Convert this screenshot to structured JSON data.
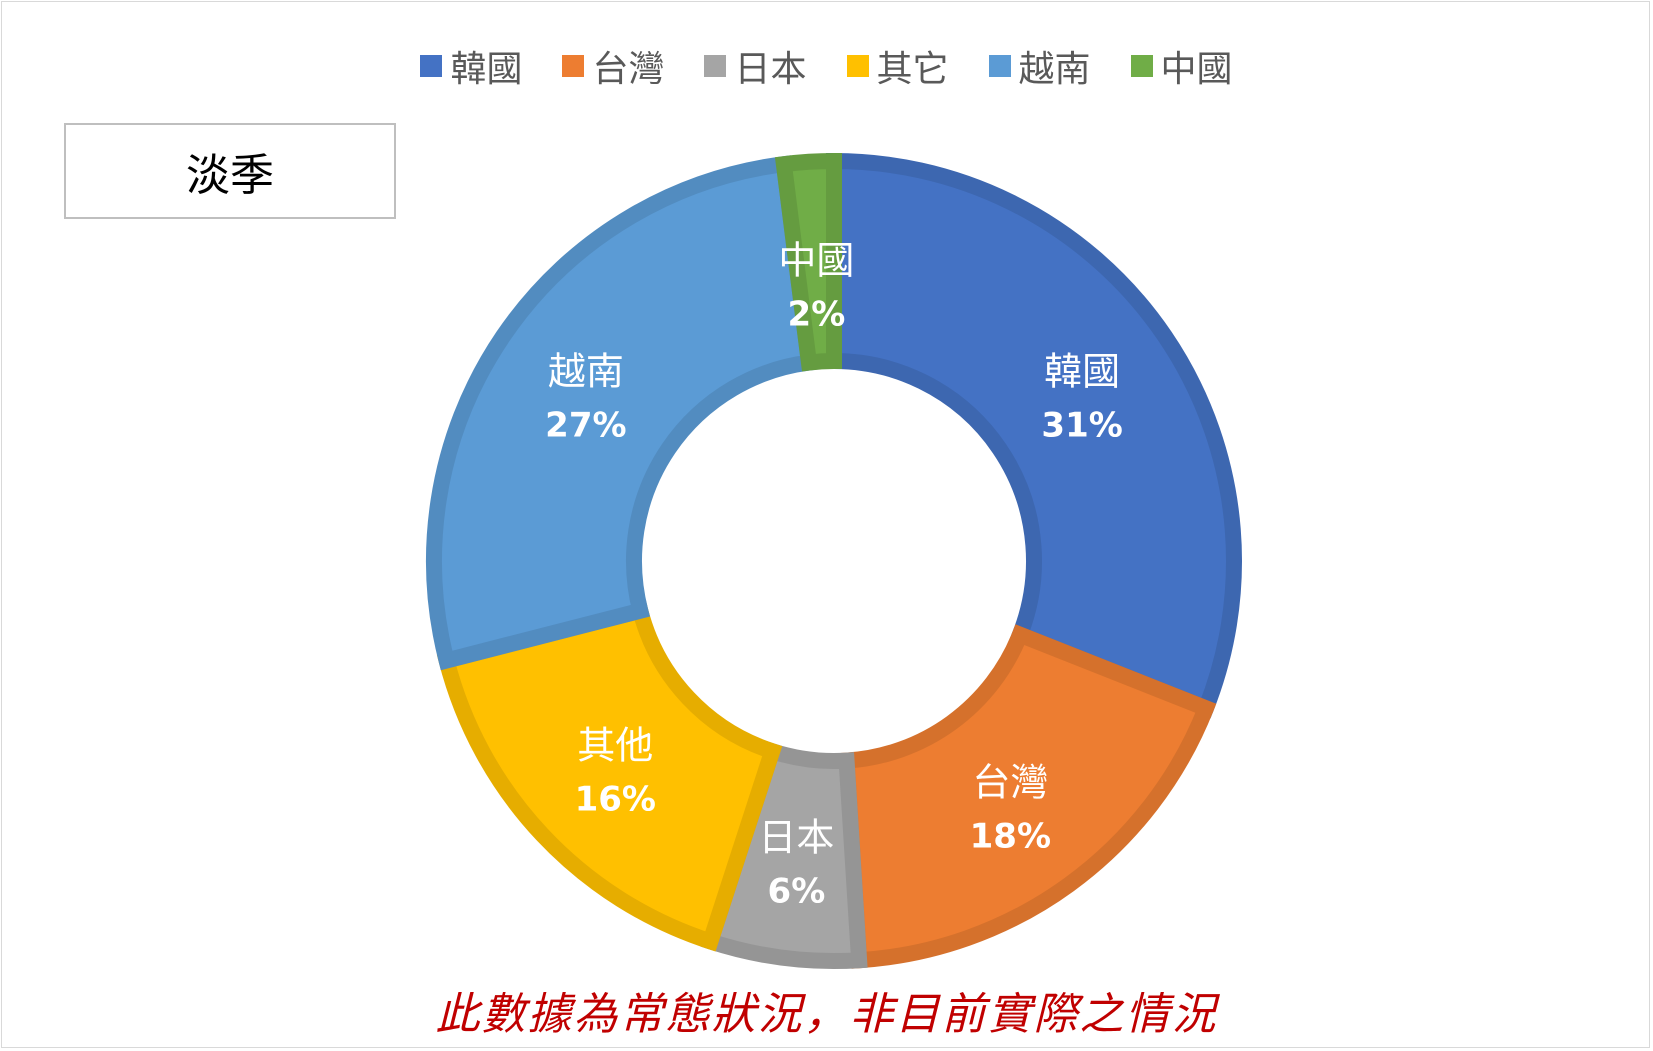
{
  "chart_data": {
    "type": "pie",
    "donut": true,
    "slices": [
      {
        "name": "韓國",
        "value": 31,
        "label_name": "韓國",
        "label_value": "31%",
        "color": "#4472c4"
      },
      {
        "name": "台灣",
        "value": 18,
        "label_name": "台灣",
        "label_value": "18%",
        "color": "#ed7d31"
      },
      {
        "name": "日本",
        "value": 6,
        "label_name": "日本",
        "label_value": "6%",
        "color": "#a5a5a5"
      },
      {
        "name": "其它",
        "value": 16,
        "label_name": "其他",
        "label_value": "16%",
        "color": "#ffc000"
      },
      {
        "name": "越南",
        "value": 27,
        "label_name": "越南",
        "label_value": "27%",
        "color": "#5b9bd5"
      },
      {
        "name": "中國",
        "value": 2,
        "label_name": "中國",
        "label_value": "2%",
        "color": "#70ad47"
      }
    ],
    "legend_position": "top"
  },
  "season_label": "淡季",
  "footnote": "此數據為常態狀況，非目前實際之情況"
}
